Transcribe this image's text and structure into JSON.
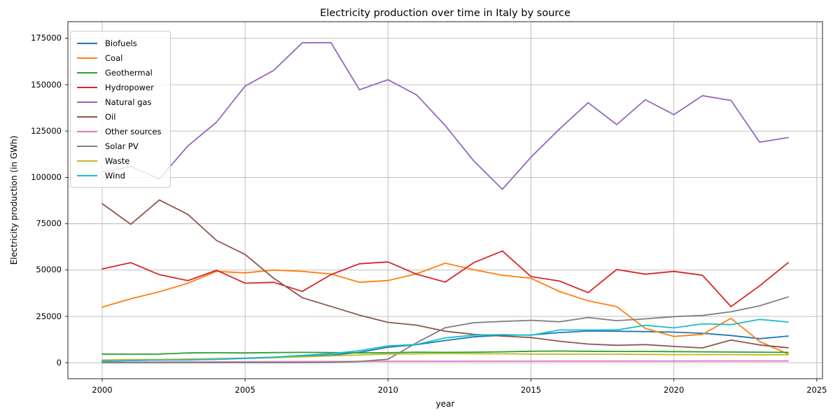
{
  "title": "Electricity production over time in Italy by source",
  "chart_data": {
    "type": "line",
    "title": "Electricity production over time in Italy by source",
    "xlabel": "year",
    "ylabel": "Electricity production (in GWh)",
    "grid": true,
    "legend_position": "upper left",
    "xlim": [
      1998.8,
      2025.2
    ],
    "ylim": [
      -8600,
      184000
    ],
    "x_ticks": [
      2000,
      2005,
      2010,
      2015,
      2020,
      2025
    ],
    "y_ticks": [
      0,
      25000,
      50000,
      75000,
      100000,
      125000,
      150000,
      175000
    ],
    "x": [
      2000,
      2001,
      2002,
      2003,
      2004,
      2005,
      2006,
      2007,
      2008,
      2009,
      2010,
      2011,
      2012,
      2013,
      2014,
      2015,
      2016,
      2017,
      2018,
      2019,
      2020,
      2021,
      2022,
      2023,
      2024
    ],
    "series": [
      {
        "name": "Biofuels",
        "color": "#1f77b4",
        "values": [
          1000,
          1200,
          1500,
          1900,
          2200,
          2500,
          3000,
          3500,
          4100,
          5600,
          8400,
          9800,
          12000,
          14000,
          14800,
          15000,
          16300,
          17100,
          17000,
          16800,
          16500,
          15900,
          14700,
          13000,
          14400
        ]
      },
      {
        "name": "Coal",
        "color": "#ff7f0e",
        "values": [
          30000,
          34500,
          38300,
          42900,
          49300,
          48500,
          50000,
          49300,
          47900,
          43400,
          44400,
          48000,
          53700,
          50200,
          47200,
          45600,
          38400,
          33400,
          30300,
          18500,
          14200,
          15300,
          24000,
          11500,
          4700
        ]
      },
      {
        "name": "Geothermal",
        "color": "#2ca02c",
        "values": [
          4700,
          4600,
          4700,
          5300,
          5400,
          5300,
          5500,
          5600,
          5500,
          5300,
          5400,
          5700,
          5600,
          5700,
          5900,
          6200,
          6300,
          6200,
          6100,
          6100,
          6000,
          5900,
          5800,
          5700,
          5600
        ]
      },
      {
        "name": "Hydropower",
        "color": "#d62728",
        "values": [
          50600,
          54000,
          47500,
          44300,
          49900,
          42900,
          43400,
          38500,
          47500,
          53400,
          54400,
          47800,
          43500,
          54000,
          60300,
          46500,
          44100,
          37800,
          50300,
          47800,
          49300,
          47200,
          30300,
          41500,
          54000
        ]
      },
      {
        "name": "Natural gas",
        "color": "#9467bd",
        "values": [
          103000,
          105800,
          99200,
          117000,
          129800,
          149300,
          157700,
          172600,
          172700,
          147300,
          152700,
          144500,
          128000,
          108900,
          93600,
          110900,
          126100,
          140300,
          128500,
          141900,
          133900,
          144100,
          141500,
          119000,
          121500
        ]
      },
      {
        "name": "Oil",
        "color": "#8c564b",
        "values": [
          85800,
          74700,
          87800,
          80000,
          66000,
          58400,
          45600,
          35100,
          30400,
          25700,
          21800,
          20300,
          17000,
          15300,
          14400,
          13600,
          11600,
          10100,
          9400,
          9800,
          8800,
          8000,
          12300,
          9600,
          8100
        ]
      },
      {
        "name": "Other sources",
        "color": "#e377c2",
        "values": [
          300,
          350,
          400,
          450,
          500,
          550,
          600,
          650,
          700,
          750,
          800,
          800,
          800,
          850,
          850,
          850,
          900,
          900,
          900,
          900,
          900,
          950,
          950,
          950,
          950
        ]
      },
      {
        "name": "Solar PV",
        "color": "#7f7f7f",
        "values": [
          20,
          20,
          25,
          30,
          30,
          35,
          40,
          50,
          200,
          700,
          1900,
          10800,
          18900,
          21600,
          22300,
          22900,
          22100,
          24400,
          22700,
          23700,
          24900,
          25500,
          27500,
          30700,
          35500
        ]
      },
      {
        "name": "Waste",
        "color": "#bcbd22",
        "values": [
          1500,
          1700,
          1800,
          2000,
          2100,
          2300,
          2700,
          3200,
          3700,
          4200,
          4700,
          4800,
          5000,
          4900,
          4800,
          4700,
          4700,
          4600,
          4600,
          4500,
          4400,
          4400,
          4400,
          4300,
          4300
        ]
      },
      {
        "name": "Wind",
        "color": "#17becf",
        "values": [
          600,
          1200,
          1400,
          1500,
          1800,
          2300,
          3000,
          4000,
          4900,
          6500,
          9100,
          9900,
          13400,
          14900,
          15200,
          14800,
          17700,
          17700,
          17700,
          20200,
          18800,
          21000,
          20600,
          23400,
          22000
        ]
      }
    ]
  }
}
